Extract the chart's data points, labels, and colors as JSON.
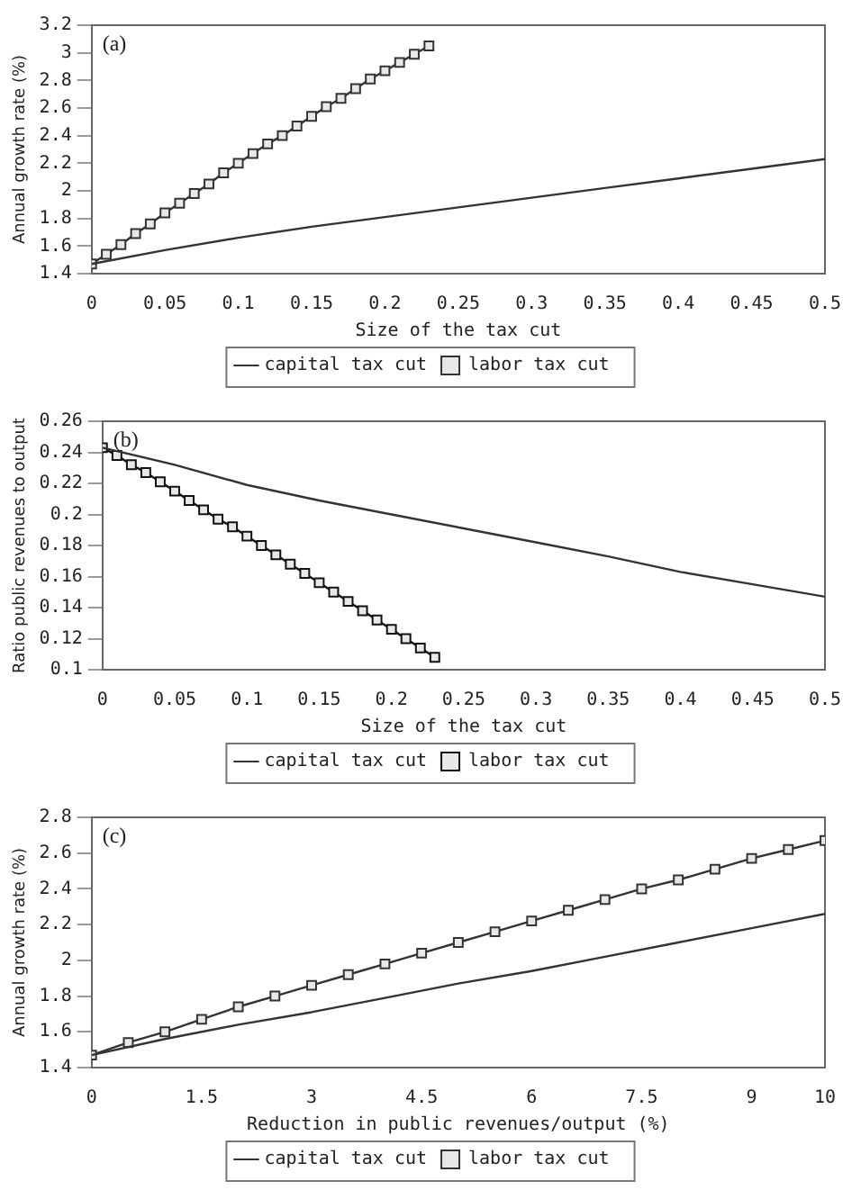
{
  "chart_data": [
    {
      "type": "line",
      "annotations": [
        "(a)"
      ],
      "xlabel": "Size of the tax cut",
      "ylabel": "Annual growth rate (%)",
      "xlim": [
        0,
        0.5
      ],
      "xticks": [
        0,
        0.05,
        0.1,
        0.15,
        0.2,
        0.25,
        0.3,
        0.35,
        0.4,
        0.45,
        0.5
      ],
      "ylim": [
        1.4,
        3.2
      ],
      "yticks": [
        1.4,
        1.6,
        1.8,
        2,
        2.2,
        2.4,
        2.6,
        2.8,
        3,
        3.2
      ],
      "grid": false,
      "legend": "bottom",
      "series": [
        {
          "name": "capital tax cut",
          "color": "#333333",
          "marker": "none",
          "x": [
            0,
            0.05,
            0.1,
            0.15,
            0.2,
            0.25,
            0.3,
            0.35,
            0.4,
            0.45,
            0.5
          ],
          "values": [
            1.47,
            1.57,
            1.66,
            1.74,
            1.81,
            1.88,
            1.95,
            2.02,
            2.09,
            2.16,
            2.23
          ]
        },
        {
          "name": "labor tax cut",
          "color": "#333333",
          "marker": "square",
          "x": [
            0,
            0.01,
            0.02,
            0.03,
            0.04,
            0.05,
            0.06,
            0.07,
            0.08,
            0.09,
            0.1,
            0.11,
            0.12,
            0.13,
            0.14,
            0.15,
            0.16,
            0.17,
            0.18,
            0.19,
            0.2,
            0.21,
            0.22,
            0.23
          ],
          "values": [
            1.47,
            1.54,
            1.61,
            1.69,
            1.76,
            1.84,
            1.91,
            1.98,
            2.05,
            2.13,
            2.2,
            2.27,
            2.34,
            2.4,
            2.47,
            2.54,
            2.61,
            2.67,
            2.74,
            2.81,
            2.87,
            2.93,
            2.99,
            3.05
          ]
        }
      ]
    },
    {
      "type": "line",
      "annotations": [
        "(b)"
      ],
      "xlabel": "Size of the tax cut",
      "ylabel": "Ratio public revenues to output",
      "xlim": [
        0,
        0.5
      ],
      "xticks": [
        0,
        0.05,
        0.1,
        0.15,
        0.2,
        0.25,
        0.3,
        0.35,
        0.4,
        0.45,
        0.5
      ],
      "ylim": [
        0.1,
        0.26
      ],
      "yticks": [
        0.1,
        0.12,
        0.14,
        0.16,
        0.18,
        0.2,
        0.22,
        0.24,
        0.26
      ],
      "grid": false,
      "legend": "bottom",
      "series": [
        {
          "name": "capital tax cut",
          "color": "#333333",
          "marker": "none",
          "x": [
            0,
            0.05,
            0.1,
            0.15,
            0.2,
            0.25,
            0.3,
            0.35,
            0.4,
            0.45,
            0.5
          ],
          "values": [
            0.243,
            0.232,
            0.219,
            0.209,
            0.2,
            0.191,
            0.182,
            0.173,
            0.163,
            0.155,
            0.147
          ]
        },
        {
          "name": "labor tax cut",
          "color": "#111111",
          "marker": "square",
          "x": [
            0,
            0.01,
            0.02,
            0.03,
            0.04,
            0.05,
            0.06,
            0.07,
            0.08,
            0.09,
            0.1,
            0.11,
            0.12,
            0.13,
            0.14,
            0.15,
            0.16,
            0.17,
            0.18,
            0.19,
            0.2,
            0.21,
            0.22,
            0.23
          ],
          "values": [
            0.243,
            0.238,
            0.232,
            0.227,
            0.221,
            0.215,
            0.209,
            0.203,
            0.197,
            0.192,
            0.186,
            0.18,
            0.174,
            0.168,
            0.162,
            0.156,
            0.15,
            0.144,
            0.138,
            0.132,
            0.126,
            0.12,
            0.114,
            0.108
          ]
        }
      ]
    },
    {
      "type": "line",
      "annotations": [
        "(c)"
      ],
      "xlabel": "Reduction in public revenues/output (%)",
      "ylabel": "Annual growth rate (%)",
      "xlim": [
        0,
        10
      ],
      "xticks": [
        0,
        1.5,
        3,
        4.5,
        6,
        7.5,
        9,
        10
      ],
      "ylim": [
        1.4,
        2.8
      ],
      "yticks": [
        1.4,
        1.6,
        1.8,
        2,
        2.2,
        2.4,
        2.6,
        2.8
      ],
      "grid": false,
      "legend": "bottom",
      "series": [
        {
          "name": "capital tax cut",
          "color": "#333333",
          "marker": "none",
          "x": [
            0,
            1,
            2,
            3,
            4,
            5,
            6,
            7,
            8,
            9,
            10
          ],
          "values": [
            1.47,
            1.56,
            1.64,
            1.71,
            1.79,
            1.87,
            1.94,
            2.02,
            2.1,
            2.18,
            2.26
          ]
        },
        {
          "name": "labor tax cut",
          "color": "#333333",
          "marker": "square",
          "x": [
            0,
            0.5,
            1,
            1.5,
            2,
            2.5,
            3,
            3.5,
            4,
            4.5,
            5,
            5.5,
            6,
            6.5,
            7,
            7.5,
            8,
            8.5,
            9,
            9.5,
            10
          ],
          "values": [
            1.47,
            1.54,
            1.6,
            1.67,
            1.74,
            1.8,
            1.86,
            1.92,
            1.98,
            2.04,
            2.1,
            2.16,
            2.22,
            2.28,
            2.34,
            2.4,
            2.45,
            2.51,
            2.57,
            2.62,
            2.67
          ]
        }
      ]
    }
  ]
}
